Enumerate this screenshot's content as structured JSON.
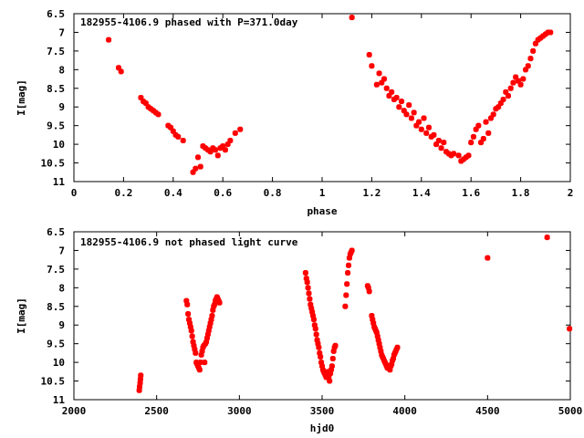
{
  "chart_data": [
    {
      "type": "scatter",
      "title": "182955-4106.9 phased with P=371.0day",
      "xlabel": "phase",
      "ylabel": "I[mag]",
      "xlim": [
        0,
        2
      ],
      "ylim": [
        11,
        6.5
      ],
      "y_inverted": true,
      "grid": false,
      "color": "#ff0000",
      "x_ticks": [
        "0",
        "0.2",
        "0.4",
        "0.6",
        "0.8",
        "1",
        "1.2",
        "1.4",
        "1.6",
        "1.8",
        "2"
      ],
      "y_ticks": [
        "6.5",
        "7",
        "7.5",
        "8",
        "8.5",
        "9",
        "9.5",
        "10",
        "10.5",
        "11"
      ],
      "series": [
        {
          "x": [
            0.14,
            0.18,
            0.19,
            0.27,
            0.28,
            0.29,
            0.3,
            0.31,
            0.32,
            0.33,
            0.34,
            0.38,
            0.39,
            0.4,
            0.41,
            0.42,
            0.44,
            0.48,
            0.49,
            0.5,
            0.51,
            0.52,
            0.53,
            0.54,
            0.55,
            0.56,
            0.57,
            0.58,
            0.59,
            0.6,
            0.61,
            0.62,
            0.63,
            0.65,
            0.67,
            1.12,
            1.19,
            1.2,
            1.22,
            1.23,
            1.24,
            1.25,
            1.26,
            1.27,
            1.28,
            1.29,
            1.3,
            1.31,
            1.32,
            1.33,
            1.34,
            1.35,
            1.36,
            1.37,
            1.38,
            1.39,
            1.4,
            1.41,
            1.42,
            1.43,
            1.44,
            1.45,
            1.46,
            1.47,
            1.48,
            1.49,
            1.5,
            1.51,
            1.52,
            1.53,
            1.55,
            1.56,
            1.57,
            1.58,
            1.59,
            1.6,
            1.61,
            1.62,
            1.63,
            1.64,
            1.65,
            1.66,
            1.67,
            1.68,
            1.69,
            1.7,
            1.71,
            1.72,
            1.73,
            1.74,
            1.75,
            1.76,
            1.77,
            1.78,
            1.79,
            1.8,
            1.81,
            1.82,
            1.83,
            1.84,
            1.85,
            1.86,
            1.87,
            1.88,
            1.89,
            1.9,
            1.91,
            1.92
          ],
          "y": [
            7.2,
            7.95,
            8.05,
            8.75,
            8.85,
            8.9,
            9.0,
            9.05,
            9.1,
            9.15,
            9.2,
            9.5,
            9.55,
            9.65,
            9.75,
            9.8,
            9.9,
            10.75,
            10.65,
            10.35,
            10.6,
            10.05,
            10.1,
            10.15,
            10.2,
            10.1,
            10.15,
            10.3,
            10.1,
            10.05,
            10.15,
            10.0,
            9.9,
            9.7,
            9.6,
            6.6,
            7.6,
            7.9,
            8.4,
            8.1,
            8.35,
            8.25,
            8.5,
            8.7,
            8.6,
            8.8,
            8.75,
            9.0,
            8.85,
            9.1,
            9.2,
            8.95,
            9.3,
            9.15,
            9.5,
            9.4,
            9.6,
            9.3,
            9.7,
            9.55,
            9.8,
            9.75,
            10.0,
            9.9,
            10.1,
            9.95,
            10.2,
            10.25,
            10.3,
            10.25,
            10.3,
            10.45,
            10.4,
            10.35,
            10.3,
            9.95,
            9.8,
            9.6,
            9.5,
            9.95,
            9.85,
            9.4,
            9.7,
            9.3,
            9.2,
            9.05,
            9.0,
            8.9,
            8.8,
            8.6,
            8.7,
            8.5,
            8.35,
            8.2,
            8.3,
            8.4,
            8.25,
            8.0,
            7.9,
            7.7,
            7.5,
            7.3,
            7.2,
            7.15,
            7.1,
            7.05,
            7.0,
            7.0
          ]
        }
      ]
    },
    {
      "type": "scatter",
      "title": "182955-4106.9 not phased light curve",
      "xlabel": "hjd0",
      "ylabel": "I[mag]",
      "xlim": [
        2000,
        5000
      ],
      "ylim": [
        11,
        6.5
      ],
      "y_inverted": true,
      "grid": false,
      "color": "#ff0000",
      "x_ticks": [
        "2000",
        "2500",
        "3000",
        "3500",
        "4000",
        "4500",
        "5000"
      ],
      "y_ticks": [
        "6.5",
        "7",
        "7.5",
        "8",
        "8.5",
        "9",
        "9.5",
        "10",
        "10.5",
        "11"
      ],
      "series": [
        {
          "x": [
            2395,
            2397,
            2400,
            2402,
            2404,
            2680,
            2685,
            2690,
            2695,
            2700,
            2705,
            2710,
            2715,
            2720,
            2725,
            2730,
            2735,
            2740,
            2745,
            2750,
            2755,
            2760,
            2765,
            2770,
            2775,
            2780,
            2785,
            2790,
            2795,
            2800,
            2805,
            2810,
            2815,
            2820,
            2825,
            2830,
            2835,
            2840,
            2845,
            2850,
            2855,
            2860,
            2865,
            2870,
            2875,
            2880,
            3400,
            3405,
            3410,
            3415,
            3420,
            3425,
            3430,
            3435,
            3440,
            3445,
            3450,
            3455,
            3460,
            3465,
            3470,
            3475,
            3480,
            3485,
            3490,
            3495,
            3500,
            3505,
            3510,
            3515,
            3520,
            3525,
            3530,
            3535,
            3540,
            3545,
            3550,
            3555,
            3560,
            3565,
            3570,
            3575,
            3580,
            3640,
            3645,
            3650,
            3655,
            3660,
            3665,
            3670,
            3675,
            3680,
            3775,
            3780,
            3785,
            3800,
            3805,
            3810,
            3815,
            3820,
            3825,
            3830,
            3835,
            3840,
            3845,
            3850,
            3855,
            3860,
            3865,
            3870,
            3875,
            3880,
            3885,
            3890,
            3895,
            3900,
            3905,
            3910,
            3915,
            3920,
            3925,
            3930,
            3935,
            3940,
            3945,
            3950,
            3955,
            4500,
            4860,
            4995
          ],
          "y": [
            10.75,
            10.65,
            10.55,
            10.45,
            10.35,
            8.35,
            8.45,
            8.7,
            8.85,
            8.95,
            9.05,
            9.15,
            9.3,
            9.45,
            9.55,
            9.65,
            9.75,
            10.0,
            10.05,
            10.1,
            10.15,
            10.2,
            10.0,
            9.8,
            9.7,
            9.6,
            9.55,
            10.0,
            9.5,
            9.45,
            9.35,
            9.25,
            9.15,
            9.05,
            8.95,
            8.85,
            8.75,
            8.6,
            8.5,
            8.45,
            8.35,
            8.3,
            8.25,
            8.3,
            8.35,
            8.4,
            7.6,
            7.75,
            7.85,
            8.0,
            8.15,
            8.3,
            8.45,
            8.55,
            8.65,
            8.75,
            8.85,
            9.0,
            9.1,
            9.25,
            9.4,
            9.5,
            9.6,
            9.75,
            9.85,
            10.0,
            10.1,
            10.2,
            10.25,
            10.3,
            10.35,
            10.4,
            10.3,
            10.25,
            10.4,
            10.5,
            10.3,
            10.2,
            10.1,
            9.9,
            9.7,
            9.6,
            9.55,
            8.5,
            8.2,
            7.9,
            7.6,
            7.4,
            7.2,
            7.1,
            7.05,
            7.0,
            7.95,
            8.0,
            8.1,
            8.75,
            8.85,
            8.95,
            9.05,
            9.1,
            9.15,
            9.2,
            9.3,
            9.4,
            9.5,
            9.6,
            9.7,
            9.8,
            9.85,
            9.9,
            9.95,
            10.0,
            10.05,
            10.1,
            10.15,
            10.1,
            10.15,
            10.2,
            10.1,
            10.05,
            9.95,
            9.9,
            9.8,
            9.75,
            9.7,
            9.65,
            9.6,
            7.2,
            6.65,
            9.1
          ]
        }
      ]
    }
  ]
}
